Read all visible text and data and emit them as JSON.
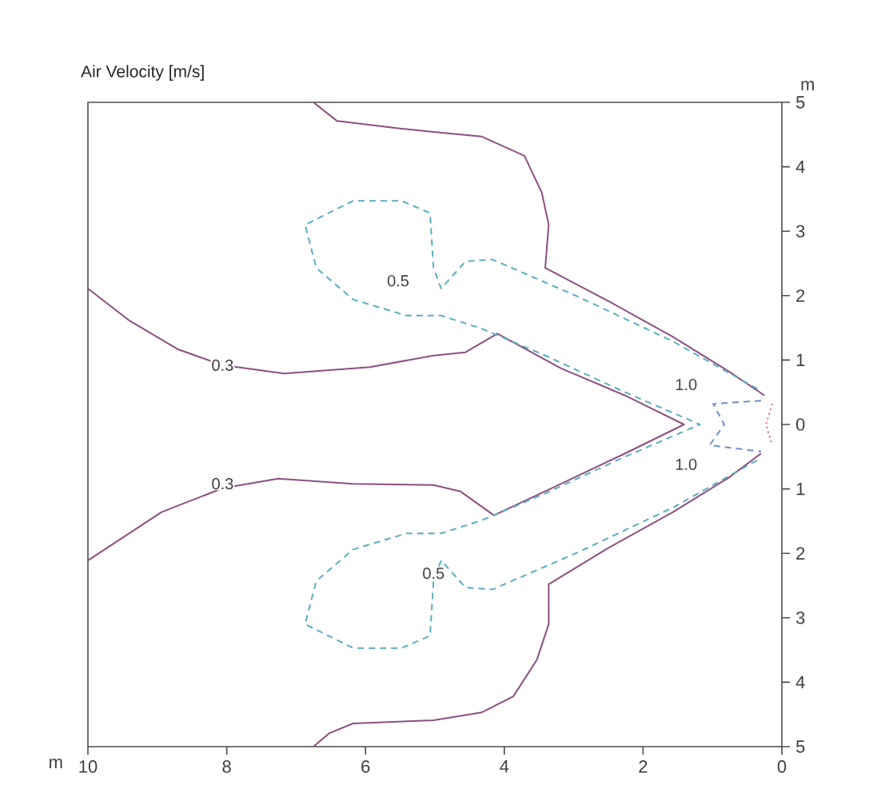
{
  "chart_data": {
    "type": "line",
    "title": "Air Velocity [m/s]",
    "xlabel": "m",
    "ylabel": "m",
    "xlim": [
      10,
      0
    ],
    "ylim": [
      -5,
      5
    ],
    "xticks": [
      10,
      8,
      6,
      4,
      2,
      0
    ],
    "yticks": [
      5,
      4,
      3,
      2,
      1,
      0,
      {
        "value": -1,
        "label": "1"
      },
      {
        "value": -2,
        "label": "2"
      },
      {
        "value": -3,
        "label": "3"
      },
      {
        "value": -4,
        "label": "4"
      },
      {
        "value": -5,
        "label": "5"
      }
    ],
    "marker": "none",
    "series": [
      {
        "color": "#8c4f80",
        "line_style": "solid",
        "x": [
          6.75,
          6.41,
          5.48,
          5.02,
          4.33,
          3.71,
          3.46,
          3.36,
          3.41,
          2.49,
          1.57,
          0.76,
          0.25
        ],
        "values": [
          5.0,
          4.71,
          4.59,
          4.54,
          4.47,
          4.17,
          3.6,
          3.1,
          2.43,
          1.91,
          1.36,
          0.82,
          0.45
        ]
      },
      {
        "color": "#8c4f80",
        "line_style": "solid",
        "x": [
          0.3,
          0.76,
          1.57,
          2.49,
          3.36,
          3.36,
          3.53,
          3.87,
          4.33,
          5.02,
          6.18,
          6.52,
          6.75
        ],
        "values": [
          -0.45,
          -0.82,
          -1.36,
          -1.91,
          -2.48,
          -3.1,
          -3.65,
          -4.22,
          -4.47,
          -4.59,
          -4.64,
          -4.79,
          -5.0
        ]
      },
      {
        "color": "#8c4f80",
        "line_style": "solid",
        "x": [
          10,
          9.4,
          8.71,
          8.06,
          7.17,
          5.94,
          5.02,
          4.56,
          4.1,
          3.18,
          2.26,
          1.41,
          2.26,
          3.18,
          4.15,
          4.63,
          5.02,
          6.18,
          7.26,
          8.06,
          8.94,
          10
        ],
        "values": [
          2.11,
          1.61,
          1.17,
          0.92,
          0.79,
          0.89,
          1.07,
          1.12,
          1.41,
          0.87,
          0.45,
          0,
          -0.45,
          -0.92,
          -1.41,
          -1.04,
          -0.94,
          -0.92,
          -0.84,
          -0.99,
          -1.36,
          -2.11
        ]
      },
      {
        "color": "#5aaec0",
        "line_style": "dashed",
        "x": [
          0.35,
          1.57,
          2.95,
          4.17,
          4.56,
          4.91,
          5.02,
          5.07,
          5.48,
          6.18,
          6.87,
          6.71,
          6.18,
          5.41,
          4.91,
          4.33,
          3.41,
          2.26,
          1.18,
          2.26,
          3.41,
          4.33,
          4.91,
          5.41,
          6.18,
          6.71,
          6.87,
          6.18,
          5.48,
          5.07,
          5.02,
          4.91,
          4.56,
          4.17,
          2.95,
          1.57,
          0.35
        ],
        "values": [
          0.55,
          1.29,
          1.99,
          2.56,
          2.53,
          2.11,
          2.43,
          3.28,
          3.47,
          3.47,
          3.1,
          2.43,
          1.94,
          1.69,
          1.69,
          1.49,
          1.07,
          0.5,
          0,
          -0.5,
          -1.07,
          -1.49,
          -1.69,
          -1.69,
          -1.94,
          -2.43,
          -3.1,
          -3.47,
          -3.47,
          -3.28,
          -2.43,
          -2.11,
          -2.53,
          -2.56,
          -1.99,
          -1.29,
          -0.55
        ]
      },
      {
        "color": "#6f8fc8",
        "line_style": "dashed",
        "x": [
          0.3,
          0.99,
          0.83,
          1.04,
          0.3
        ],
        "values": [
          0.37,
          0.32,
          0,
          -0.32,
          -0.42
        ]
      },
      {
        "color": "#d06a6a",
        "line_style": "dotted",
        "x": [
          0.14,
          0.23,
          0.14
        ],
        "values": [
          0.32,
          0,
          -0.32
        ]
      }
    ],
    "annotations": [
      {
        "text": "0.3",
        "x": 8.06,
        "y": 0.92
      },
      {
        "text": "0.3",
        "x": 8.06,
        "y": -0.92
      },
      {
        "text": "0.5",
        "x": 5.53,
        "y": 2.23
      },
      {
        "text": "0.5",
        "x": 5.02,
        "y": -2.31
      },
      {
        "text": "1.0",
        "x": 1.38,
        "y": 0.62
      },
      {
        "text": "1.0",
        "x": 1.38,
        "y": -0.62
      }
    ]
  }
}
